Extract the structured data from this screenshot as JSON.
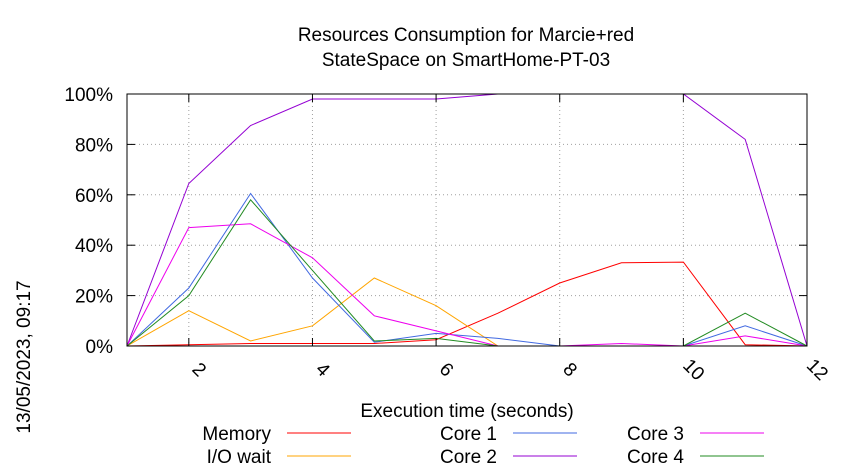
{
  "side_timestamp": "13/05/2023, 09:17",
  "chart_data": {
    "type": "line",
    "title": "Resources Consumption for Marcie+red\nStateSpace on SmartHome-PT-03",
    "xlabel": "Execution time (seconds)",
    "ylabel": "",
    "xlim": [
      1,
      12
    ],
    "ylim": [
      0,
      100
    ],
    "x_ticks": [
      2,
      4,
      6,
      8,
      10,
      12
    ],
    "y_ticks": [
      0,
      20,
      40,
      60,
      80,
      100
    ],
    "y_tick_suffix": "%",
    "grid": true,
    "legend_position": "bottom",
    "series": [
      {
        "name": "Memory",
        "color": "#ff0000",
        "x": [
          1,
          2,
          3,
          4,
          5,
          6,
          7,
          8,
          9,
          10,
          11,
          12
        ],
        "y": [
          0,
          0.5,
          1,
          1,
          1,
          2.5,
          13,
          25,
          33,
          33.3,
          0.5,
          0
        ]
      },
      {
        "name": "I/O wait",
        "color": "#ffa500",
        "x": [
          1,
          2,
          3,
          4,
          5,
          6,
          7,
          8,
          9,
          10,
          11,
          12
        ],
        "y": [
          0,
          14,
          2,
          8,
          27,
          16,
          0,
          0,
          0,
          0,
          0,
          0
        ]
      },
      {
        "name": "Core 1",
        "color": "#4169e1",
        "x": [
          1,
          2,
          3,
          4,
          5,
          6,
          7,
          8,
          9,
          10,
          11,
          12
        ],
        "y": [
          0,
          23,
          60.5,
          27,
          1.5,
          5,
          3,
          0,
          0,
          0,
          8,
          0
        ]
      },
      {
        "name": "Core 2",
        "color": "#9400d3",
        "x": [
          1,
          2,
          3,
          4,
          5,
          6,
          7,
          8,
          9,
          10,
          11,
          12
        ],
        "y": [
          0,
          64.5,
          87.5,
          98,
          98,
          98,
          100,
          100,
          100,
          100,
          82,
          0
        ]
      },
      {
        "name": "Core 3",
        "color": "#ee00ee",
        "x": [
          1,
          2,
          3,
          4,
          5,
          6,
          7,
          8,
          9,
          10,
          11,
          12
        ],
        "y": [
          0,
          47,
          48.5,
          35,
          12,
          6,
          0,
          0,
          1,
          0,
          4,
          0
        ]
      },
      {
        "name": "Core 4",
        "color": "#228b22",
        "x": [
          1,
          2,
          3,
          4,
          5,
          6,
          7,
          8,
          9,
          10,
          11,
          12
        ],
        "y": [
          0,
          20,
          58,
          30,
          2,
          3,
          0,
          0,
          0,
          0,
          13,
          0
        ]
      }
    ]
  }
}
